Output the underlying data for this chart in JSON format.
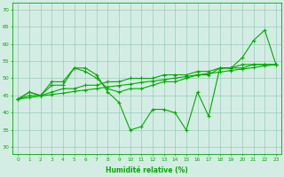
{
  "xlabel": "Humidité relative (%)",
  "x": [
    0,
    1,
    2,
    3,
    4,
    5,
    6,
    7,
    8,
    9,
    10,
    11,
    12,
    13,
    14,
    15,
    16,
    17,
    18,
    19,
    20,
    21,
    22,
    23
  ],
  "ylim": [
    28,
    72
  ],
  "yticks": [
    30,
    35,
    40,
    45,
    50,
    55,
    60,
    65,
    70
  ],
  "bg_color": "#d4ede4",
  "grid_color": "#99ccbb",
  "line_color": "#00aa00",
  "font_color": "#00aa00",
  "main_line": [
    44,
    46,
    45,
    48,
    48,
    53,
    53,
    51,
    46,
    43,
    35,
    36,
    41,
    41,
    40,
    35,
    46,
    39,
    53,
    53,
    56,
    61,
    64,
    54
  ],
  "smooth_line1": [
    44,
    46,
    45,
    49,
    49,
    53,
    52,
    50,
    47,
    46,
    47,
    47,
    48,
    49,
    49,
    50,
    51,
    51,
    53,
    53,
    54,
    54,
    54,
    54
  ],
  "smooth_line2": [
    44,
    45,
    45,
    46,
    47,
    47,
    48,
    48,
    49,
    49,
    50,
    50,
    50,
    51,
    51,
    51,
    52,
    52,
    53,
    53,
    53,
    54,
    54,
    54
  ],
  "trend_line": [
    44,
    44.4,
    44.9,
    45.3,
    45.7,
    46.2,
    46.6,
    47.0,
    47.5,
    47.9,
    48.3,
    48.8,
    49.2,
    49.6,
    50.1,
    50.5,
    51.0,
    51.4,
    51.8,
    52.3,
    52.7,
    53.1,
    53.6,
    54.0
  ]
}
